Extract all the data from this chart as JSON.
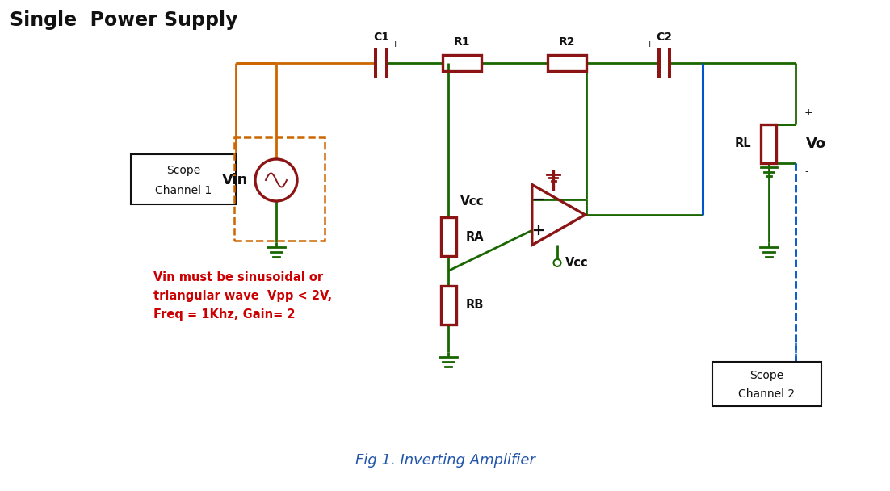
{
  "title": "Single  Power Supply",
  "subtitle": "Fig 1. Inverting Amplifier",
  "annotation_text": "Vin must be sinusoidal or\ntriangular wave  Vpp < 2V,\nFreq = 1Khz, Gain= 2",
  "colors": {
    "green": "#1a6600",
    "orange": "#CC6600",
    "blue": "#0055CC",
    "component": "#8B1414",
    "black": "#111111",
    "red_ann": "#CC0000",
    "white": "#FFFFFF"
  },
  "figsize": [
    11.02,
    6.08
  ],
  "dpi": 100
}
